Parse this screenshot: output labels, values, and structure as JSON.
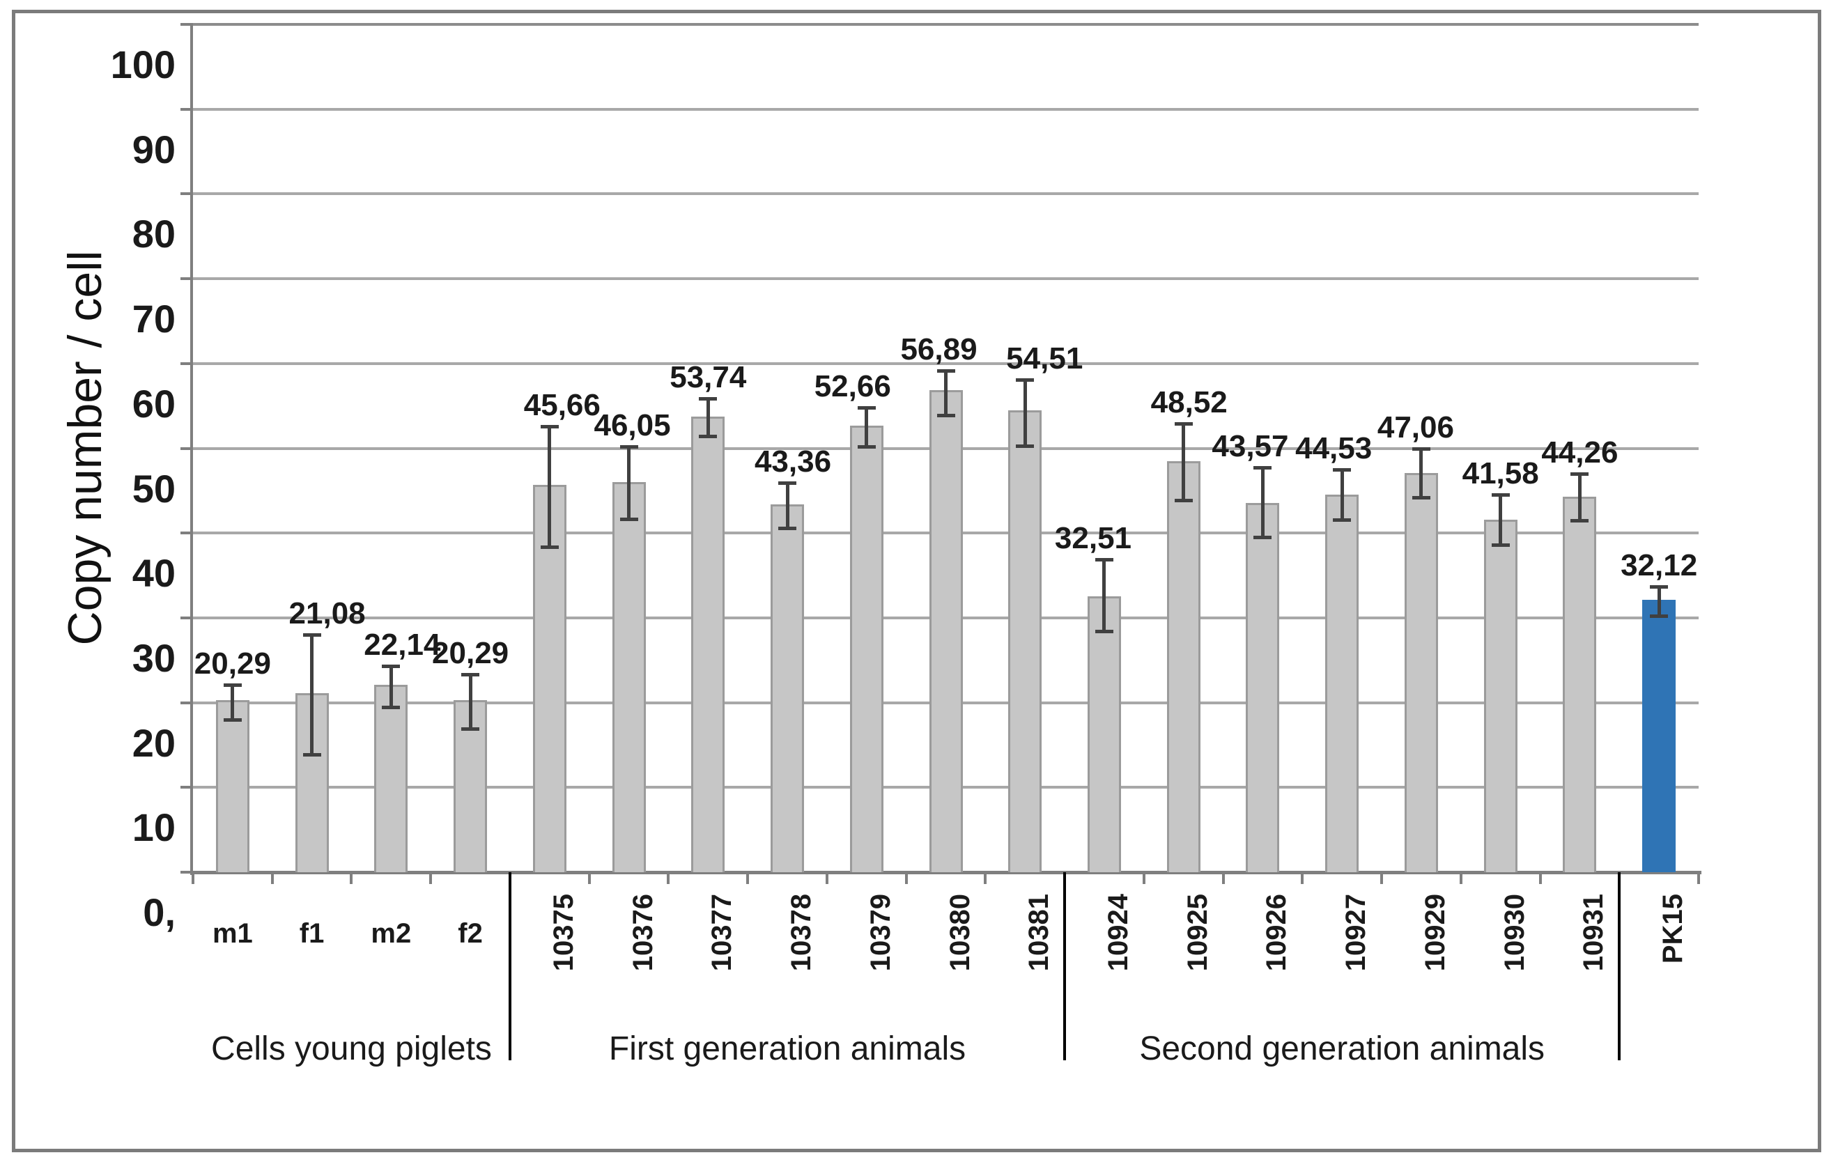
{
  "figure": {
    "background": "#ffffff",
    "border_color": "#7b7b7b"
  },
  "chart_data": {
    "type": "bar",
    "title": "",
    "xlabel": "",
    "ylabel": "Copy number / cell",
    "ylim": [
      0,
      100
    ],
    "ytick_step": 10,
    "grid": true,
    "legend": false,
    "y_tick_labels": [
      "100",
      "90",
      "80",
      "70",
      "60",
      "50",
      "40",
      "30",
      "20",
      "10",
      "0,"
    ],
    "y_tick_values": [
      100,
      90,
      80,
      70,
      60,
      50,
      40,
      30,
      20,
      10,
      0
    ],
    "categories": [
      "m1",
      "f1",
      "m2",
      "f2",
      "10375",
      "10376",
      "10377",
      "10378",
      "10379",
      "10380",
      "10381",
      "10924",
      "10925",
      "10926",
      "10927",
      "10929",
      "10930",
      "10931",
      "PK15"
    ],
    "values": [
      20.29,
      21.08,
      22.14,
      20.29,
      45.66,
      46.05,
      53.74,
      43.36,
      52.66,
      56.89,
      54.51,
      32.51,
      48.52,
      43.57,
      44.53,
      47.06,
      41.58,
      44.26,
      32.12
    ],
    "data_labels": [
      "20,29",
      "21,08",
      "22,14",
      "20,29",
      "45,66",
      "46,05",
      "53,74",
      "43,36",
      "52,66",
      "56,89",
      "54,51",
      "32,51",
      "48,52",
      "43,57",
      "44,53",
      "47,06",
      "41,58",
      "44,26",
      "32,12"
    ],
    "error_top": [
      22.1,
      28.0,
      24.3,
      23.3,
      52.6,
      50.2,
      55.9,
      45.9,
      54.8,
      59.2,
      58.1,
      36.9,
      52.9,
      47.7,
      47.5,
      50.0,
      44.5,
      47.0,
      33.7
    ],
    "error_bottom": [
      18.0,
      13.9,
      19.5,
      16.9,
      38.4,
      41.7,
      51.4,
      40.6,
      50.2,
      53.9,
      50.3,
      28.4,
      43.9,
      39.5,
      41.6,
      44.2,
      38.6,
      41.5,
      30.2
    ],
    "label_dx": [
      0,
      22,
      16,
      0,
      18,
      5,
      0,
      8,
      -20,
      -10,
      28,
      -16,
      8,
      -18,
      -12,
      -8,
      0,
      0,
      0
    ],
    "rotated_labels": [
      false,
      false,
      false,
      false,
      true,
      true,
      true,
      true,
      true,
      true,
      true,
      true,
      true,
      true,
      true,
      true,
      true,
      true,
      true
    ],
    "groups": [
      {
        "label": "Cells young piglets",
        "from": 0,
        "to": 3
      },
      {
        "label": "First generation animals",
        "from": 4,
        "to": 10
      },
      {
        "label": "Second generation animals",
        "from": 11,
        "to": 17
      }
    ],
    "highlight_index": 18,
    "colors": {
      "bar_fill": "#c6c6c6",
      "bar_border": "#9b9b9b",
      "highlight_fill": "#2f74b5",
      "highlight_border": "#2f74b5",
      "gridline": "#a8a8a8",
      "plot_top_line": "#8c8c8c",
      "axis": "#7f7f7f",
      "error_bar": "#404040",
      "divider": "#000000",
      "text": "#1a1a1a"
    }
  }
}
